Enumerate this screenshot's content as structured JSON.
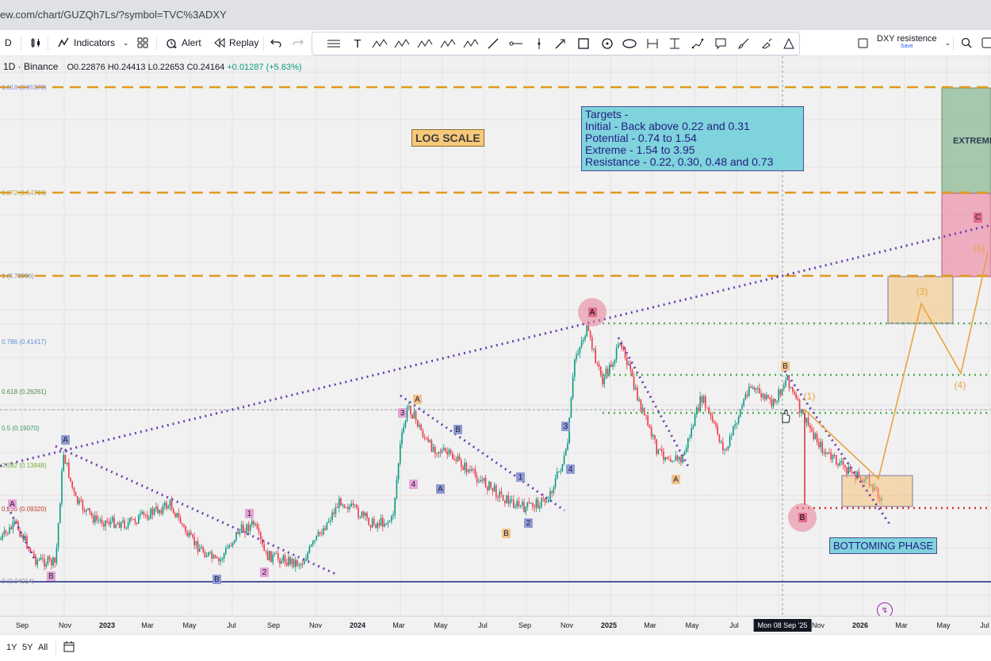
{
  "browser": {
    "url": "ew.com/chart/GUZQh7Ls/?symbol=TVC%3ADXY"
  },
  "toolbar": {
    "interval": "D",
    "indicators_label": "Indicators",
    "alert_label": "Alert",
    "replay_label": "Replay",
    "layout_name": "DXY resistence",
    "layout_status": "Save"
  },
  "legend": {
    "title": "1D · Binance",
    "open": "O0.22876",
    "high": "H0.24413",
    "low": "L0.22653",
    "close": "C0.24164",
    "change": "+0.01287 (+5.63%)"
  },
  "fib_labels": [
    {
      "text": "1.618 (3.95378)",
      "color": "#8c8ee0"
    },
    {
      "text": "1.272 (1.54716)",
      "color": "#b6a24e"
    },
    {
      "text": "1 (0.73996)",
      "color": "#8a8a8a"
    },
    {
      "text": "0.786 (0.41417)",
      "color": "#5b8fd6"
    },
    {
      "text": "0.618 (0.26261)",
      "color": "#4c8c4c"
    },
    {
      "text": "0.5 (0.19070)",
      "color": "#3c9a6a"
    },
    {
      "text": "0.382 (0.13848)",
      "color": "#78b03c"
    },
    {
      "text": "0.236 (0.09320)",
      "color": "#c0392b"
    },
    {
      "text": "0 (0.04914)",
      "color": "#7f8fa6"
    }
  ],
  "annotations": {
    "log_scale": "LOG SCALE",
    "targets": [
      "Targets -",
      "Initial - Back above 0.22 and 0.31",
      "Potential - 0.74 to 1.54",
      "Extreme - 1.54 to 3.95",
      "Resistance - 0.22, 0.30, 0.48 and 0.73"
    ],
    "bottoming": "BOTTOMING PHASE",
    "extreme": "EXTREME"
  },
  "wave_labels": {
    "a": "A",
    "b": "B",
    "c": "C",
    "w1": "1",
    "w2": "2",
    "w3": "3",
    "w4": "4",
    "w3_proj": "(3)",
    "w4_proj": "(4)",
    "w5_proj": "(5)",
    "w1_proj": "(1)"
  },
  "time_axis": [
    "Sep",
    "Nov",
    "2023",
    "Mar",
    "May",
    "Jul",
    "Sep",
    "Nov",
    "2024",
    "Mar",
    "May",
    "Jul",
    "Sep",
    "Nov",
    "2025",
    "Mar",
    "May",
    "Jul",
    "Mon 08 Sep '25",
    "Nov",
    "2026",
    "Mar",
    "May",
    "Jul"
  ],
  "ranges": [
    "1Y",
    "5Y",
    "All"
  ],
  "colors": {
    "background": "#f1f1f1",
    "up_candle": "#089981",
    "down_candle": "#f23645",
    "fib_dash": "#e09a1e",
    "trend_dots": "#6a3fb0",
    "green_dots": "#4caf50",
    "projection": "#e8a33c"
  }
}
